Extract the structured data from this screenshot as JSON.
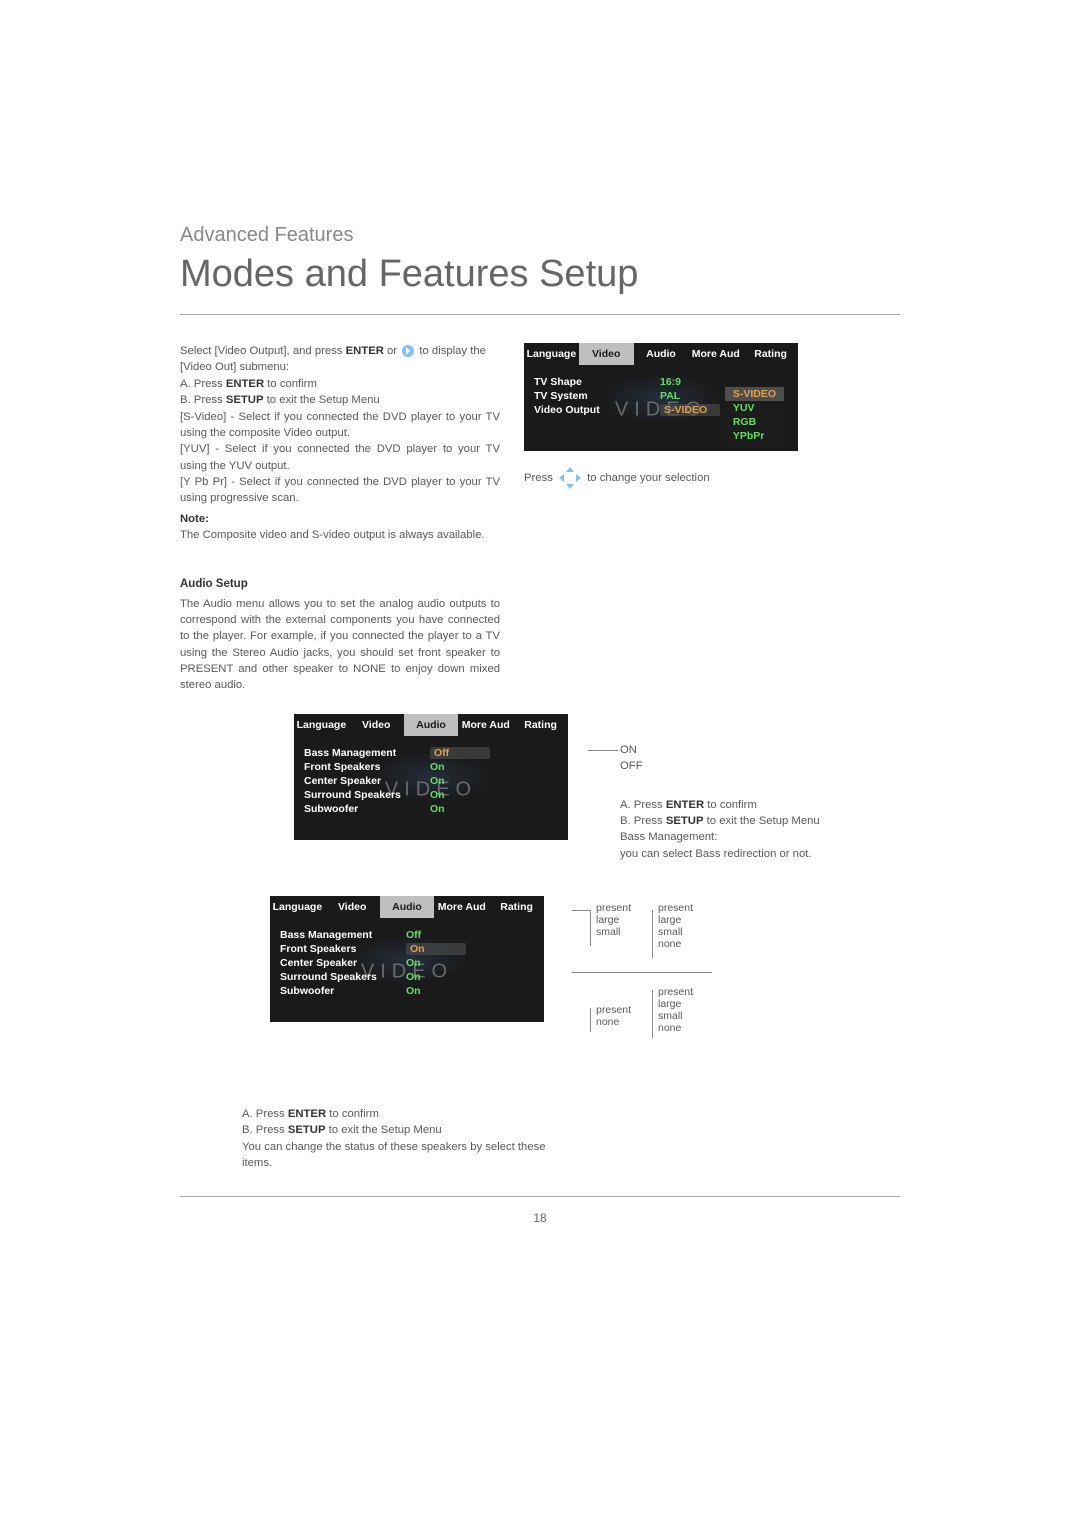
{
  "breadcrumb": "Advanced Features",
  "title": "Modes and Features Setup",
  "intro": {
    "select_line_a": "Select [Video Output], and press ",
    "enter": "ENTER",
    "select_line_b": " or ",
    "select_line_c": " to display the [Video Out] submenu:",
    "confirm_a": "A.  Press ",
    "confirm_a_key": "ENTER",
    "confirm_a_tail": " to confirm",
    "confirm_b": "B.  Press ",
    "confirm_b_key": "SETUP",
    "confirm_b_tail": " to exit the Setup Menu",
    "svideo": "[S-Video] - Select if you connected the DVD player to your TV using the composite Video output.",
    "yuv": "[YUV] - Select if you connected the DVD player to your TV using the YUV output.",
    "ypbpr": "[Y Pb Pr] - Select if you connected the DVD player to your TV using progressive scan.",
    "note_label": "Note:",
    "note_body": "The Composite video and S-video output is always available."
  },
  "press_change": "to change your selection",
  "press_word": "Press",
  "audio_setup": {
    "heading": "Audio Setup",
    "body": "The Audio menu allows you to set the analog audio outputs to correspond with the external components you have connected to the player. For example, if you connected the player to a TV using the Stereo Audio jacks, you should set front speaker to PRESENT and other speaker to NONE to enjoy down mixed stereo audio."
  },
  "on_off": {
    "on": "ON",
    "off": "OFF"
  },
  "bass_block": {
    "a": "A.  Press ",
    "a_key": "ENTER",
    "a_tail": " to confirm",
    "b": "B.  Press ",
    "b_key": "SETUP",
    "b_tail": " to exit the Setup Menu",
    "line1": "Bass Management:",
    "line2": "you can select Bass redirection or not."
  },
  "speakers_block": {
    "a": "A.  Press ",
    "a_key": "ENTER",
    "a_tail": " to confirm",
    "b": "B.  Press ",
    "b_key": "SETUP",
    "b_tail": " to exit the Setup Menu",
    "tail": "You can change the status of these speakers by select these items."
  },
  "osd_tabs": [
    "Language",
    "Video",
    "Audio",
    "More Aud",
    "Rating"
  ],
  "osd1": {
    "active_tab_index": 1,
    "items": [
      {
        "lbl": "TV Shape",
        "val": "16:9"
      },
      {
        "lbl": "TV System",
        "val": "PAL"
      },
      {
        "lbl": "Video Output",
        "val": "S-VIDEO",
        "sel": true
      }
    ],
    "dropdown": [
      "S-VIDEO",
      "YUV",
      "RGB",
      "YPbPr"
    ],
    "dropdown_sel_index": 0,
    "watermark": "VIDEO"
  },
  "osd2": {
    "active_tab_index": 2,
    "items": [
      {
        "lbl": "Bass Management",
        "val": "Off",
        "sel": true
      },
      {
        "lbl": "Front Speakers",
        "val": "On"
      },
      {
        "lbl": "Center Speaker",
        "val": "On"
      },
      {
        "lbl": "Surround Speakers",
        "val": "On"
      },
      {
        "lbl": "Subwoofer",
        "val": "On"
      }
    ],
    "watermark": "VIDEO"
  },
  "osd3": {
    "active_tab_index": 2,
    "items": [
      {
        "lbl": "Bass Management",
        "val": "Off"
      },
      {
        "lbl": "Front Speakers",
        "val": "On",
        "sel": true
      },
      {
        "lbl": "Center Speaker",
        "val": "On"
      },
      {
        "lbl": "Surround Speakers",
        "val": "On"
      },
      {
        "lbl": "Subwoofer",
        "val": "On"
      }
    ],
    "watermark": "VIDEO"
  },
  "callouts": {
    "group1": [
      "present",
      "large",
      "small"
    ],
    "group2": [
      "present",
      "large",
      "small",
      "none"
    ],
    "group3": [
      "present",
      "none"
    ],
    "group4": [
      "present",
      "large",
      "small",
      "none"
    ]
  },
  "page_number": "18",
  "colors": {
    "text": "#5a5a5a",
    "heading": "#666666",
    "osd_bg": "#1a1a1a",
    "osd_active_tab": "#bfbfbf",
    "osd_val": "#5ee05e",
    "osd_sel": "#e0a050",
    "rule": "#aaaaaa"
  }
}
